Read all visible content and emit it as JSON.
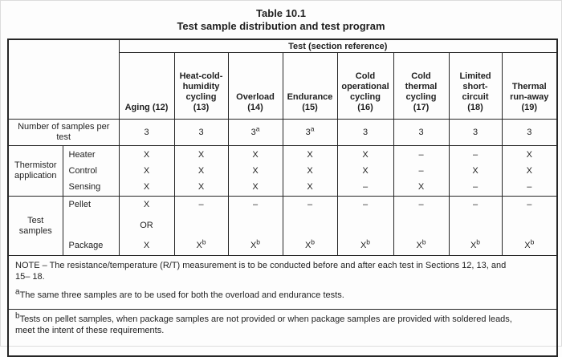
{
  "title": "Table 10.1",
  "subtitle": "Test sample distribution and test program",
  "colors": {
    "border": "#262626",
    "text": "#1f1f1f",
    "background": "#fdfdfd"
  },
  "table": {
    "test_header": "Test (section reference)",
    "columns": [
      {
        "id": "aging",
        "label": "Aging (12)",
        "lines": [
          "Aging (12)"
        ]
      },
      {
        "id": "heat-cold-humidity-cycling",
        "label": "Heat-cold-humidity cycling (13)",
        "lines": [
          "Heat-cold-",
          "humidity",
          "cycling",
          "(13)"
        ]
      },
      {
        "id": "overload",
        "label": "Overload (14)",
        "lines": [
          "Overload",
          "(14)"
        ]
      },
      {
        "id": "endurance",
        "label": "Endurance (15)",
        "lines": [
          "Endurance",
          "(15)"
        ]
      },
      {
        "id": "cold-operational-cycling",
        "label": "Cold operational cycling (16)",
        "lines": [
          "Cold",
          "operational",
          "cycling",
          "(16)"
        ]
      },
      {
        "id": "cold-thermal-cycling",
        "label": "Cold thermal cycling (17)",
        "lines": [
          "Cold",
          "thermal",
          "cycling",
          "(17)"
        ]
      },
      {
        "id": "limited-short-circuit",
        "label": "Limited short-circuit (18)",
        "lines": [
          "Limited",
          "short-",
          "circuit",
          "(18)"
        ]
      },
      {
        "id": "thermal-run-away",
        "label": "Thermal run-away (19)",
        "lines": [
          "Thermal",
          "run-away",
          "(19)"
        ]
      }
    ],
    "samples_per_test": {
      "label": "Number of samples per test",
      "values": [
        "3",
        "3",
        "3^a",
        "3^a",
        "3",
        "3",
        "3",
        "3"
      ]
    },
    "thermistor_application": {
      "group_label": "Thermistor application",
      "rows": [
        {
          "label": "Heater",
          "values": [
            "X",
            "X",
            "X",
            "X",
            "X",
            "–",
            "–",
            "X"
          ]
        },
        {
          "label": "Control",
          "values": [
            "X",
            "X",
            "X",
            "X",
            "X",
            "–",
            "X",
            "X"
          ]
        },
        {
          "label": "Sensing",
          "values": [
            "X",
            "X",
            "X",
            "X",
            "–",
            "X",
            "–",
            "–"
          ]
        }
      ]
    },
    "test_samples": {
      "group_label": "Test samples",
      "row_labels": [
        "Pellet",
        "Package"
      ],
      "cells": [
        [
          "X",
          "OR",
          "X"
        ],
        [
          "–",
          "X^b"
        ],
        [
          "–",
          "X^b"
        ],
        [
          "–",
          "X^b"
        ],
        [
          "–",
          "X^b"
        ],
        [
          "–",
          "X^b"
        ],
        [
          "–",
          "X^b"
        ],
        [
          "–",
          "X^b"
        ]
      ]
    },
    "notes": {
      "main_lines": [
        "NOTE – The resistance/temperature (R/T) measurement is to be conducted before and after each test in Sections 12, 13, and",
        "15– 18."
      ],
      "a": {
        "sup": "a",
        "lines": [
          "The same three samples are to be used for both the overload and endurance tests."
        ]
      },
      "b": {
        "sup": "b",
        "lines": [
          "Tests on pellet samples, when package samples are not provided or when package samples are provided with soldered leads,",
          "meet the intent of these requirements."
        ]
      }
    }
  }
}
